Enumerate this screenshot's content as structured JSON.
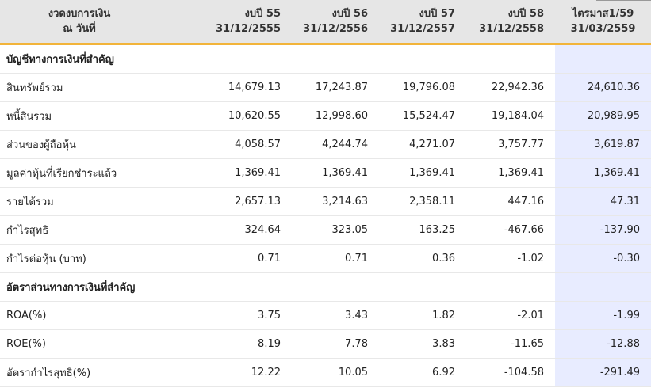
{
  "header": {
    "label_line1": "งวดงบการเงิน",
    "label_line2": "ณ วันที่",
    "columns": [
      {
        "line1": "งบปี 55",
        "line2": "31/12/2555"
      },
      {
        "line1": "งบปี 56",
        "line2": "31/12/2556"
      },
      {
        "line1": "งบปี 57",
        "line2": "31/12/2557"
      },
      {
        "line1": "งบปี 58",
        "line2": "31/12/2558"
      },
      {
        "line1": "ไตรมาส1/59",
        "line2": "31/03/2559"
      }
    ]
  },
  "rows": [
    {
      "label": "บัญชีทางการเงินที่สำคัญ",
      "section": true,
      "values": [
        "",
        "",
        "",
        "",
        ""
      ]
    },
    {
      "label": "สินทรัพย์รวม",
      "values": [
        "14,679.13",
        "17,243.87",
        "19,796.08",
        "22,942.36",
        "24,610.36"
      ]
    },
    {
      "label": "หนี้สินรวม",
      "values": [
        "10,620.55",
        "12,998.60",
        "15,524.47",
        "19,184.04",
        "20,989.95"
      ]
    },
    {
      "label": "ส่วนของผู้ถือหุ้น",
      "values": [
        "4,058.57",
        "4,244.74",
        "4,271.07",
        "3,757.77",
        "3,619.87"
      ]
    },
    {
      "label": "มูลค่าหุ้นที่เรียกชำระแล้ว",
      "values": [
        "1,369.41",
        "1,369.41",
        "1,369.41",
        "1,369.41",
        "1,369.41"
      ]
    },
    {
      "label": "รายได้รวม",
      "values": [
        "2,657.13",
        "3,214.63",
        "2,358.11",
        "447.16",
        "47.31"
      ]
    },
    {
      "label": "กำไรสุทธิ",
      "values": [
        "324.64",
        "323.05",
        "163.25",
        "-467.66",
        "-137.90"
      ]
    },
    {
      "label": "กำไรต่อหุ้น (บาท)",
      "values": [
        "0.71",
        "0.71",
        "0.36",
        "-1.02",
        "-0.30"
      ]
    },
    {
      "label": "อัตราส่วนทางการเงินที่สำคัญ",
      "section": true,
      "values": [
        "",
        "",
        "",
        "",
        ""
      ]
    },
    {
      "label": "ROA(%)",
      "values": [
        "3.75",
        "3.43",
        "1.82",
        "-2.01",
        "-1.99"
      ]
    },
    {
      "label": "ROE(%)",
      "values": [
        "8.19",
        "7.78",
        "3.83",
        "-11.65",
        "-12.88"
      ]
    },
    {
      "label": "อัตรากำไรสุทธิ(%)",
      "values": [
        "12.22",
        "10.05",
        "6.92",
        "-104.58",
        "-291.49"
      ]
    }
  ]
}
